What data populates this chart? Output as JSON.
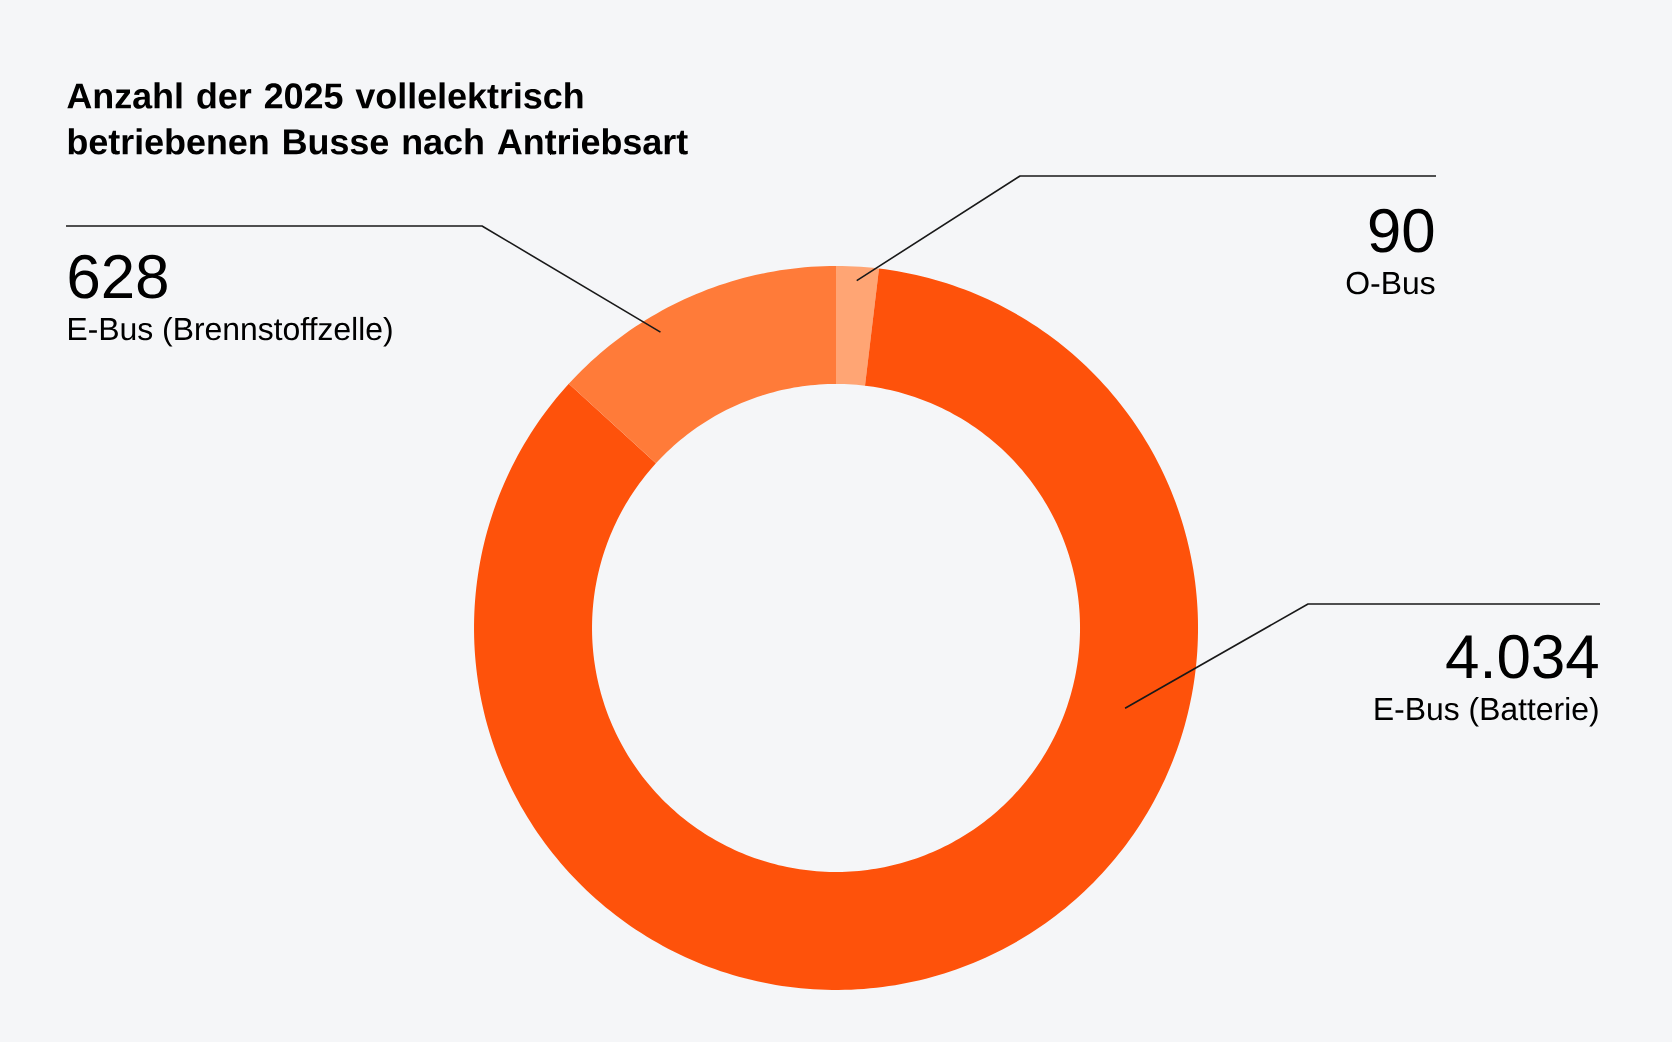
{
  "chart_data": {
    "type": "donut",
    "title": "Anzahl der 2025 vollelektrisch betriebenen Busse nach Antriebsart",
    "categories": [
      "O-Bus",
      "E-Bus (Batterie)",
      "E-Bus (Brennstoffzelle)"
    ],
    "values": [
      90,
      4034,
      628
    ],
    "colors": [
      "#ffa574",
      "#fe520b",
      "#ff7b39"
    ],
    "value_labels": [
      "90",
      "4.034",
      "628"
    ]
  }
}
